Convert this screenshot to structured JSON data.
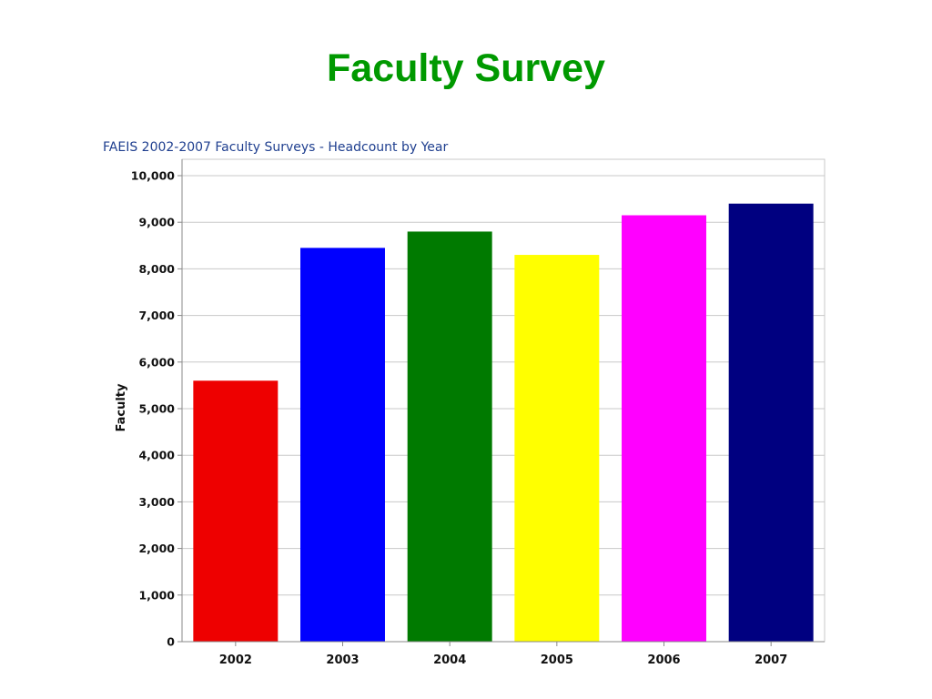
{
  "page": {
    "title": "Faculty Survey",
    "title_color": "#009900"
  },
  "chart_data": {
    "type": "bar",
    "title": "FAEIS 2002-2007 Faculty Surveys - Headcount by Year",
    "xlabel": "",
    "ylabel": "Faculty",
    "categories": [
      "2002",
      "2003",
      "2004",
      "2005",
      "2006",
      "2007"
    ],
    "values": [
      5600,
      8450,
      8800,
      8300,
      9150,
      9400
    ],
    "colors": [
      "#ee0000",
      "#0000ff",
      "#007a00",
      "#ffff00",
      "#ff00ff",
      "#000080"
    ],
    "ylim": [
      0,
      10000
    ],
    "yticks": [
      0,
      1000,
      2000,
      3000,
      4000,
      5000,
      6000,
      7000,
      8000,
      9000,
      10000
    ],
    "ytick_labels": [
      "0",
      "1,000",
      "2,000",
      "3,000",
      "4,000",
      "5,000",
      "6,000",
      "7,000",
      "8,000",
      "9,000",
      "10,000"
    ],
    "grid": true,
    "legend": "none"
  }
}
